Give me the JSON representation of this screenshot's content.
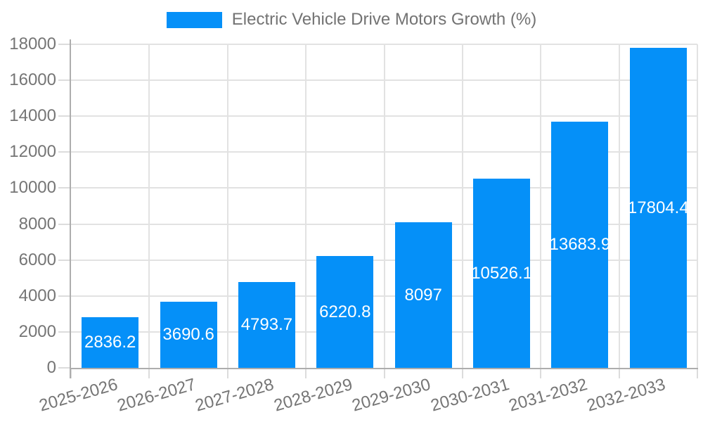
{
  "chart_data": {
    "type": "bar",
    "title": "Electric Vehicle Drive Motors Growth (%)",
    "categories": [
      "2025-2026",
      "2026-2027",
      "2027-2028",
      "2028-2029",
      "2029-2030",
      "2030-2031",
      "2031-2032",
      "2032-2033"
    ],
    "values": [
      2836.2,
      3690.6,
      4793.7,
      6220.8,
      8097,
      10526.1,
      13683.9,
      17804.4
    ],
    "value_labels": [
      "2836.2",
      "3690.6",
      "4793.7",
      "6220.8",
      "8097",
      "10526.1",
      "13683.9",
      "17804.4"
    ],
    "xlabel": "",
    "ylabel": "",
    "ylim": [
      0,
      18000
    ],
    "ytick_step": 2000,
    "ytick_labels": [
      "0",
      "2000",
      "4000",
      "6000",
      "8000",
      "10000",
      "12000",
      "14000",
      "16000",
      "18000"
    ],
    "grid": true,
    "legend_position": "top",
    "colors": {
      "bar": "#0590f8",
      "gridline": "#e2e2e2",
      "tick": "#dcdcdc",
      "axis": "#adadad",
      "tick_text": "#757575",
      "value_text": "#ffffff",
      "background": "#ffffff"
    }
  }
}
